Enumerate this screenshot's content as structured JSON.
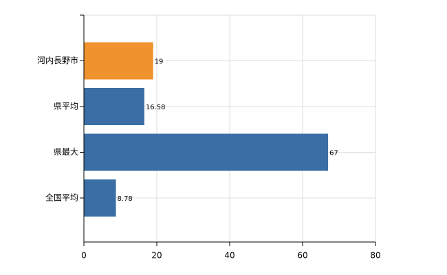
{
  "chart_data": {
    "type": "bar",
    "orientation": "horizontal",
    "categories": [
      "河内長野市",
      "県平均",
      "県最大",
      "全国平均"
    ],
    "values": [
      19,
      16.58,
      67,
      8.78
    ],
    "colors": [
      "#f0922e",
      "#3a6ea5",
      "#3a6ea5",
      "#3a6ea5"
    ],
    "xlim": [
      0,
      80
    ],
    "xticks": [
      0,
      20,
      40,
      60,
      80
    ],
    "grid": true
  }
}
